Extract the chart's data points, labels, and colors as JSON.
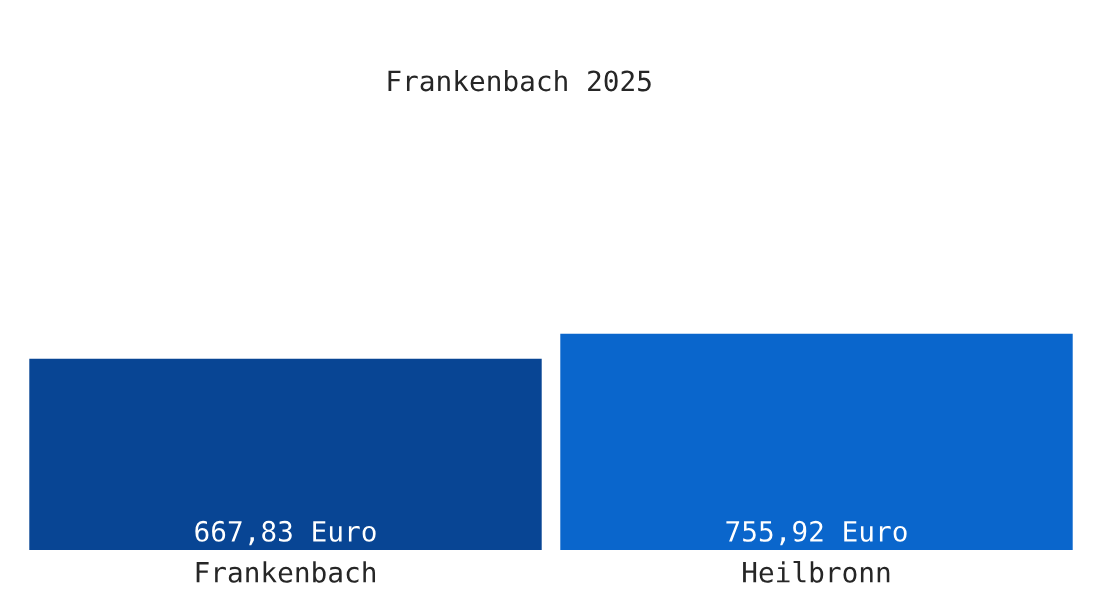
{
  "chart_data": {
    "type": "bar",
    "title": "Frankenbach 2025",
    "categories": [
      "Frankenbach",
      "Heilbronn"
    ],
    "values": [
      667.83,
      755.92
    ],
    "colors": [
      "#084594",
      "#0a66cc"
    ],
    "value_labels": [
      "667,83 Euro",
      "755,92 Euro"
    ],
    "grid": false,
    "legend": false
  }
}
